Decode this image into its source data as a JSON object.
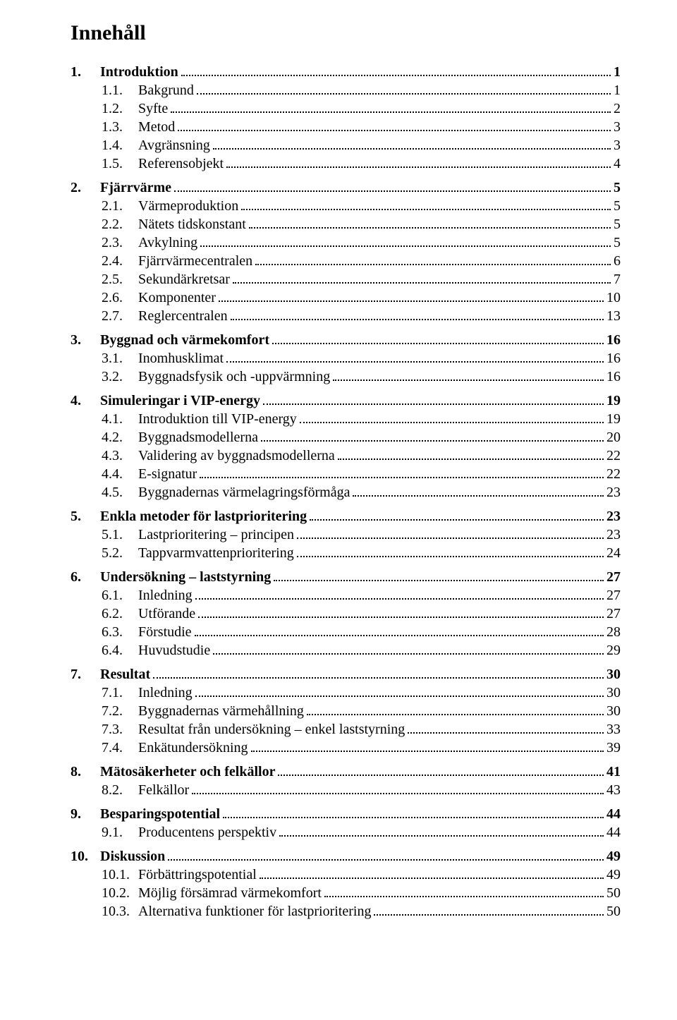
{
  "title": "Innehåll",
  "text_color": "#000000",
  "background_color": "#ffffff",
  "sections": [
    {
      "num": "1.",
      "label": "Introduktion",
      "page": "1",
      "subs": [
        {
          "num": "1.1.",
          "label": "Bakgrund",
          "page": "1"
        },
        {
          "num": "1.2.",
          "label": "Syfte",
          "page": "2"
        },
        {
          "num": "1.3.",
          "label": "Metod",
          "page": "3"
        },
        {
          "num": "1.4.",
          "label": "Avgränsning",
          "page": "3"
        },
        {
          "num": "1.5.",
          "label": "Referensobjekt",
          "page": "4"
        }
      ]
    },
    {
      "num": "2.",
      "label": "Fjärrvärme",
      "page": "5",
      "subs": [
        {
          "num": "2.1.",
          "label": "Värmeproduktion",
          "page": "5"
        },
        {
          "num": "2.2.",
          "label": "Nätets tidskonstant",
          "page": "5"
        },
        {
          "num": "2.3.",
          "label": "Avkylning",
          "page": "5"
        },
        {
          "num": "2.4.",
          "label": "Fjärrvärmecentralen",
          "page": "6"
        },
        {
          "num": "2.5.",
          "label": "Sekundärkretsar",
          "page": "7"
        },
        {
          "num": "2.6.",
          "label": "Komponenter",
          "page": "10"
        },
        {
          "num": "2.7.",
          "label": "Reglercentralen",
          "page": "13"
        }
      ]
    },
    {
      "num": "3.",
      "label": "Byggnad och värmekomfort",
      "page": "16",
      "subs": [
        {
          "num": "3.1.",
          "label": "Inomhusklimat",
          "page": "16"
        },
        {
          "num": "3.2.",
          "label": "Byggnadsfysik och -uppvärmning",
          "page": "16"
        }
      ]
    },
    {
      "num": "4.",
      "label": "Simuleringar i VIP-energy",
      "page": "19",
      "subs": [
        {
          "num": "4.1.",
          "label": "Introduktion till VIP-energy",
          "page": "19"
        },
        {
          "num": "4.2.",
          "label": "Byggnadsmodellerna",
          "page": "20"
        },
        {
          "num": "4.3.",
          "label": "Validering av byggnadsmodellerna",
          "page": "22"
        },
        {
          "num": "4.4.",
          "label": "E-signatur",
          "page": "22"
        },
        {
          "num": "4.5.",
          "label": "Byggnadernas värmelagringsförmåga",
          "page": "23"
        }
      ]
    },
    {
      "num": "5.",
      "label": "Enkla metoder för lastprioritering",
      "page": "23",
      "subs": [
        {
          "num": "5.1.",
          "label": "Lastprioritering – principen",
          "page": "23"
        },
        {
          "num": "5.2.",
          "label": "Tappvarmvattenprioritering",
          "page": "24"
        }
      ]
    },
    {
      "num": "6.",
      "label": "Undersökning – laststyrning",
      "page": "27",
      "subs": [
        {
          "num": "6.1.",
          "label": "Inledning",
          "page": "27"
        },
        {
          "num": "6.2.",
          "label": "Utförande",
          "page": "27"
        },
        {
          "num": "6.3.",
          "label": "Förstudie",
          "page": "28"
        },
        {
          "num": "6.4.",
          "label": "Huvudstudie",
          "page": "29"
        }
      ]
    },
    {
      "num": "7.",
      "label": "Resultat",
      "page": "30",
      "subs": [
        {
          "num": "7.1.",
          "label": "Inledning",
          "page": "30"
        },
        {
          "num": "7.2.",
          "label": "Byggnadernas värmehållning",
          "page": "30"
        },
        {
          "num": "7.3.",
          "label": "Resultat från undersökning – enkel laststyrning",
          "page": "33"
        },
        {
          "num": "7.4.",
          "label": "Enkätundersökning",
          "page": "39"
        }
      ]
    },
    {
      "num": "8.",
      "label": "Mätosäkerheter och felkällor",
      "page": "41",
      "subs": [
        {
          "num": "8.2.",
          "label": "Felkällor",
          "page": "43"
        }
      ]
    },
    {
      "num": "9.",
      "label": "Besparingspotential",
      "page": "44",
      "subs": [
        {
          "num": "9.1.",
          "label": "Producentens perspektiv",
          "page": "44"
        }
      ]
    },
    {
      "num": "10.",
      "label": "Diskussion",
      "page": "49",
      "subs": [
        {
          "num": "10.1.",
          "label": "Förbättringspotential",
          "page": "49"
        },
        {
          "num": "10.2.",
          "label": "Möjlig försämrad värmekomfort",
          "page": "50"
        },
        {
          "num": "10.3.",
          "label": "Alternativa funktioner för lastprioritering",
          "page": "50"
        }
      ]
    }
  ]
}
